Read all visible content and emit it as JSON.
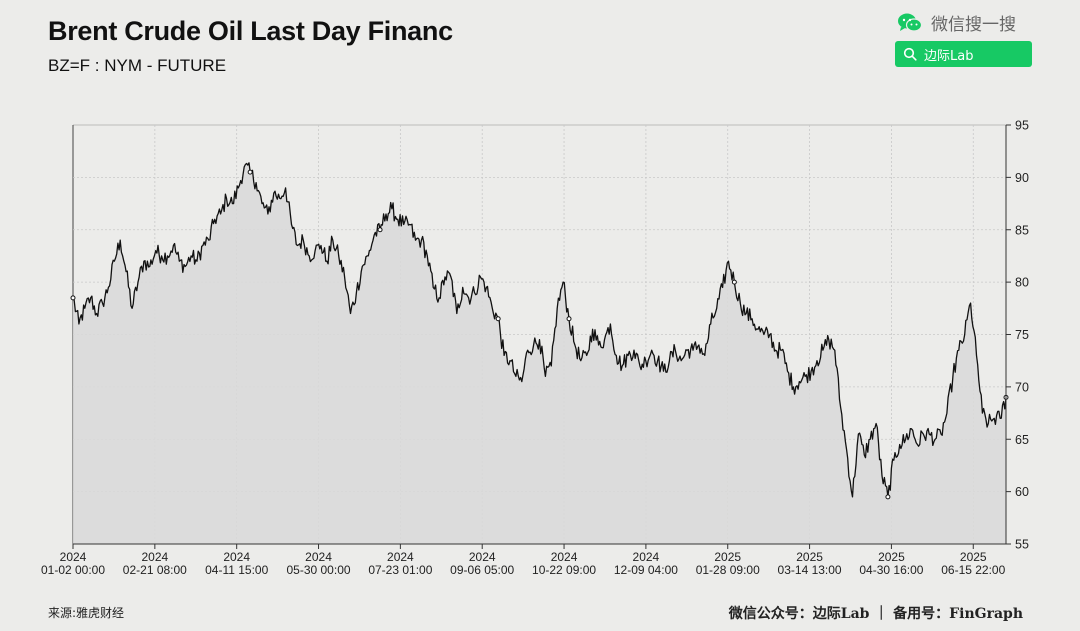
{
  "header": {
    "title": "Brent Crude Oil Last Day Financ",
    "subtitle": "BZ=F : NYM - FUTURE"
  },
  "wechat": {
    "icon": "wechat-icon",
    "search_text": "微信搜一搜",
    "account_label": "边际Lab",
    "brand_color": "#17c964"
  },
  "footer": {
    "source": "来源:雅虎财经",
    "credit": "微信公众号：边际Lab ｜ 备用号：FinGraph"
  },
  "chart_data": {
    "type": "line",
    "area_fill": true,
    "grid": true,
    "y_axis_side": "right",
    "ylim": [
      55,
      95
    ],
    "y_ticks": [
      55,
      60,
      65,
      70,
      75,
      80,
      85,
      90,
      95
    ],
    "x_ticks": [
      {
        "year": "2024",
        "label": "01-02 00:00"
      },
      {
        "year": "2024",
        "label": "02-21 08:00"
      },
      {
        "year": "2024",
        "label": "04-11 15:00"
      },
      {
        "year": "2024",
        "label": "05-30 00:00"
      },
      {
        "year": "2024",
        "label": "07-23 01:00"
      },
      {
        "year": "2024",
        "label": "09-06 05:00"
      },
      {
        "year": "2024",
        "label": "10-22 09:00"
      },
      {
        "year": "2024",
        "label": "12-09 04:00"
      },
      {
        "year": "2025",
        "label": "01-28 09:00"
      },
      {
        "year": "2025",
        "label": "03-14 13:00"
      },
      {
        "year": "2025",
        "label": "04-30 16:00"
      },
      {
        "year": "2025",
        "label": "06-15 22:00"
      }
    ],
    "series": [
      {
        "values": [
          78.5,
          76.0,
          77.5,
          78.5,
          77.0,
          78.0,
          79.5,
          82.0,
          84.0,
          81.0,
          77.5,
          80.0,
          82.0,
          81.5,
          83.0,
          82.5,
          82.5,
          83.5,
          82.0,
          81.5,
          82.5,
          82.0,
          83.5,
          84.0,
          86.0,
          86.5,
          88.0,
          87.5,
          89.0,
          91.0,
          90.5,
          89.5,
          87.5,
          86.5,
          88.5,
          88.0,
          89.0,
          85.5,
          83.5,
          84.0,
          82.5,
          83.0,
          83.5,
          82.0,
          84.0,
          82.5,
          80.5,
          77.0,
          79.0,
          81.5,
          82.5,
          84.5,
          85.0,
          86.5,
          87.0,
          86.0,
          85.5,
          85.5,
          84.0,
          84.0,
          82.5,
          79.5,
          78.5,
          80.5,
          80.5,
          77.0,
          79.5,
          78.5,
          79.0,
          80.5,
          79.5,
          77.5,
          76.5,
          73.0,
          72.5,
          71.0,
          70.5,
          73.5,
          74.0,
          74.5,
          71.0,
          72.0,
          77.5,
          80.0,
          76.5,
          74.0,
          72.5,
          73.0,
          75.5,
          74.0,
          74.5,
          76.0,
          73.0,
          72.0,
          73.0,
          73.5,
          72.0,
          72.5,
          73.5,
          72.5,
          71.5,
          72.5,
          73.5,
          72.5,
          73.5,
          73.5,
          74.0,
          73.0,
          76.0,
          77.5,
          79.5,
          82.0,
          80.0,
          78.0,
          77.0,
          76.5,
          75.5,
          75.0,
          75.0,
          73.5,
          73.5,
          71.5,
          70.0,
          70.5,
          71.0,
          71.5,
          72.5,
          73.5,
          74.5,
          73.5,
          68.0,
          64.0,
          59.5,
          65.5,
          63.5,
          65.0,
          66.5,
          61.5,
          59.5,
          63.0,
          64.5,
          65.0,
          66.0,
          64.5,
          65.5,
          65.5,
          65.0,
          65.5,
          67.5,
          71.0,
          73.5,
          75.0,
          78.0,
          73.0,
          67.5,
          66.5,
          67.0,
          67.0,
          69.0
        ]
      }
    ]
  }
}
